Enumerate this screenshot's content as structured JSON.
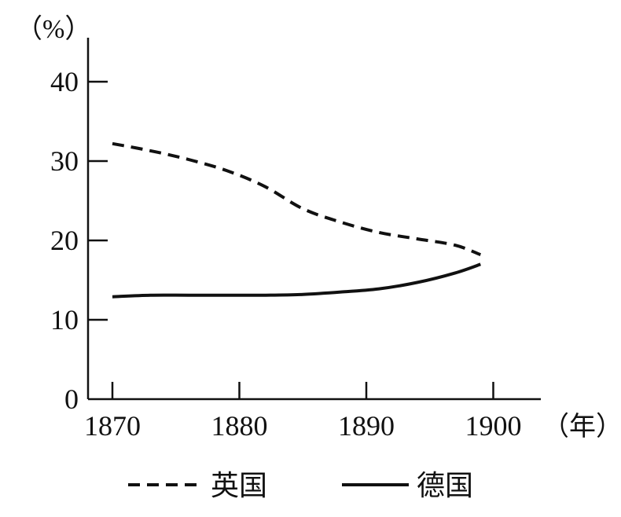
{
  "chart_data": {
    "type": "line",
    "y_unit_label": "（%）",
    "x_unit_label": "（年）",
    "xlim": [
      1868,
      1904
    ],
    "ylim": [
      0,
      45
    ],
    "x_ticks": [
      1870,
      1880,
      1890,
      1900
    ],
    "y_ticks": [
      0,
      10,
      20,
      30,
      40
    ],
    "grid": false,
    "legend_position": "bottom",
    "series": [
      {
        "name": "英国",
        "style": "dashed",
        "color": "#111111",
        "points": [
          [
            1870,
            32.2
          ],
          [
            1873,
            31.3
          ],
          [
            1876,
            30.2
          ],
          [
            1879,
            28.8
          ],
          [
            1882,
            26.8
          ],
          [
            1885,
            24.0
          ],
          [
            1888,
            22.3
          ],
          [
            1891,
            21.0
          ],
          [
            1894,
            20.2
          ],
          [
            1897,
            19.4
          ],
          [
            1899,
            18.2
          ]
        ]
      },
      {
        "name": "德国",
        "style": "solid",
        "color": "#111111",
        "points": [
          [
            1870,
            12.9
          ],
          [
            1873,
            13.1
          ],
          [
            1876,
            13.1
          ],
          [
            1879,
            13.1
          ],
          [
            1882,
            13.1
          ],
          [
            1885,
            13.2
          ],
          [
            1888,
            13.5
          ],
          [
            1891,
            13.9
          ],
          [
            1894,
            14.7
          ],
          [
            1897,
            15.9
          ],
          [
            1899,
            17.0
          ]
        ]
      }
    ]
  }
}
